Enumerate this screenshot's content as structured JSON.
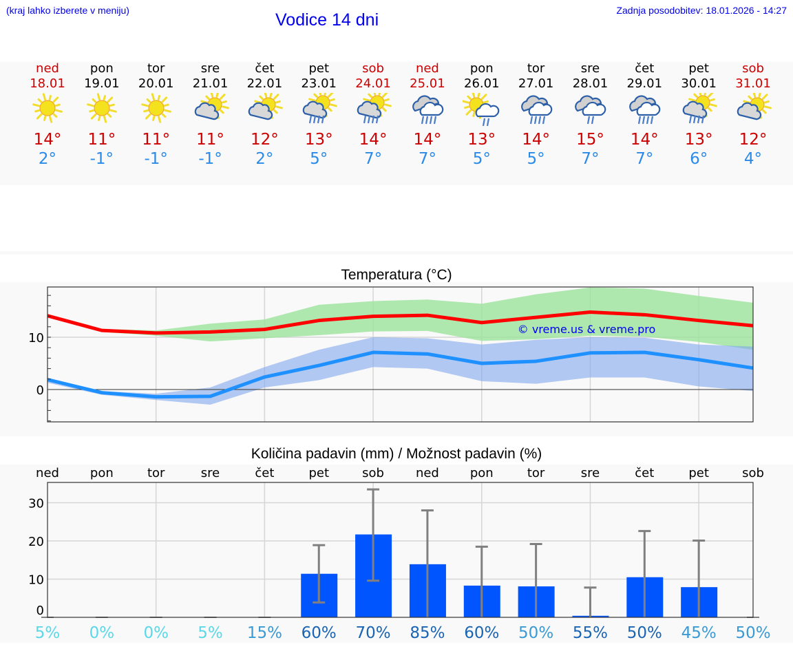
{
  "header": {
    "hint": "(kraj lahko izberete v meniju)",
    "title": "Vodice 14 dni",
    "updated": "Zadnja posodobitev: 18.01.2026 - 14:27"
  },
  "days": [
    {
      "name": "ned",
      "date": "18.01",
      "weekend": true,
      "icon": "sunny",
      "tmax": "14°",
      "tmin": "2°"
    },
    {
      "name": "pon",
      "date": "19.01",
      "weekend": false,
      "icon": "sunny",
      "tmax": "11°",
      "tmin": "-1°"
    },
    {
      "name": "tor",
      "date": "20.01",
      "weekend": false,
      "icon": "sunny",
      "tmax": "11°",
      "tmin": "-1°"
    },
    {
      "name": "sre",
      "date": "21.01",
      "weekend": false,
      "icon": "partly-cloudy",
      "tmax": "11°",
      "tmin": "-1°"
    },
    {
      "name": "čet",
      "date": "22.01",
      "weekend": false,
      "icon": "partly-cloudy",
      "tmax": "12°",
      "tmin": "2°"
    },
    {
      "name": "pet",
      "date": "23.01",
      "weekend": false,
      "icon": "sun-cloud-rain",
      "tmax": "13°",
      "tmin": "5°"
    },
    {
      "name": "sob",
      "date": "24.01",
      "weekend": true,
      "icon": "sun-cloud-rain",
      "tmax": "14°",
      "tmin": "7°"
    },
    {
      "name": "ned",
      "date": "25.01",
      "weekend": true,
      "icon": "cloudy-rain",
      "tmax": "14°",
      "tmin": "7°"
    },
    {
      "name": "pon",
      "date": "26.01",
      "weekend": false,
      "icon": "sun-cloud-light-rain",
      "tmax": "13°",
      "tmin": "5°"
    },
    {
      "name": "tor",
      "date": "27.01",
      "weekend": false,
      "icon": "cloudy-rain",
      "tmax": "14°",
      "tmin": "5°"
    },
    {
      "name": "sre",
      "date": "28.01",
      "weekend": false,
      "icon": "cloudy-light-rain",
      "tmax": "15°",
      "tmin": "7°"
    },
    {
      "name": "čet",
      "date": "29.01",
      "weekend": false,
      "icon": "cloudy-rain",
      "tmax": "14°",
      "tmin": "7°"
    },
    {
      "name": "pet",
      "date": "30.01",
      "weekend": false,
      "icon": "sun-cloud-rain",
      "tmax": "13°",
      "tmin": "6°"
    },
    {
      "name": "sob",
      "date": "31.01",
      "weekend": true,
      "icon": "partly-cloudy",
      "tmax": "12°",
      "tmin": "4°"
    }
  ],
  "colors": {
    "tmax": "#cc0000",
    "tmin": "#2a8ae8",
    "weekend": "#cc0000",
    "link": "#0000ee",
    "bar": "#0055ff",
    "errorbar": "#808080"
  },
  "chart_data": [
    {
      "type": "line",
      "title": "Temperatura (°C)",
      "xlabel": "",
      "ylabel": "",
      "ylim": [
        -6.2,
        19.6
      ],
      "yticks": [
        0,
        10
      ],
      "grid": true,
      "watermark": "© vreme.us & vreme.pro",
      "categories": [
        "18.01",
        "19.01",
        "20.01",
        "21.01",
        "22.01",
        "23.01",
        "24.01",
        "25.01",
        "26.01",
        "27.01",
        "28.01",
        "29.01",
        "30.01",
        "31.01"
      ],
      "series": [
        {
          "name": "max",
          "color": "#ff0000",
          "values": [
            14.1,
            11.3,
            10.8,
            11.0,
            11.5,
            13.2,
            14.0,
            14.2,
            12.8,
            13.8,
            14.8,
            14.3,
            13.2,
            12.2
          ]
        },
        {
          "name": "max_range_upper",
          "color": "#aee9ae",
          "values": [
            14.2,
            11.6,
            11.3,
            12.6,
            13.4,
            16.2,
            16.9,
            17.2,
            16.4,
            18.2,
            19.5,
            19.3,
            17.9,
            16.6
          ]
        },
        {
          "name": "max_range_lower",
          "color": "#aee9ae",
          "values": [
            14.0,
            11.0,
            10.3,
            9.2,
            9.8,
            10.4,
            11.1,
            11.2,
            9.3,
            9.6,
            10.3,
            10.1,
            9.1,
            7.6
          ]
        },
        {
          "name": "min",
          "color": "#1e90ff",
          "values": [
            1.9,
            -0.6,
            -1.4,
            -1.3,
            2.4,
            4.6,
            7.1,
            6.8,
            5.0,
            5.4,
            7.0,
            7.1,
            5.7,
            4.1
          ]
        },
        {
          "name": "min_range_upper",
          "color": "#adc6f2",
          "values": [
            2.1,
            -0.3,
            -0.8,
            0.4,
            4.3,
            7.6,
            10.0,
            9.8,
            8.6,
            9.5,
            10.0,
            9.9,
            8.6,
            8.2
          ]
        },
        {
          "name": "min_range_lower",
          "color": "#adc6f2",
          "values": [
            1.3,
            -1.0,
            -2.0,
            -2.9,
            0.4,
            1.8,
            4.3,
            4.0,
            1.6,
            1.1,
            2.3,
            2.3,
            0.6,
            -0.3
          ]
        }
      ]
    },
    {
      "type": "bar",
      "title": "Količina padavin (mm) / Možnost padavin (%)",
      "xlabel": "",
      "ylabel": "",
      "ylim": [
        0,
        35.3
      ],
      "yticks": [
        0,
        10,
        20,
        30
      ],
      "grid": true,
      "categories": [
        "ned",
        "pon",
        "tor",
        "sre",
        "čet",
        "pet",
        "sob",
        "ned",
        "pon",
        "tor",
        "sre",
        "čet",
        "pet",
        "sob"
      ],
      "series": [
        {
          "name": "precip_mm",
          "color": "#0055ff",
          "values": [
            0,
            0,
            0,
            0,
            0,
            11.4,
            21.7,
            13.9,
            8.3,
            8.1,
            0.4,
            10.5,
            7.9,
            0
          ]
        },
        {
          "name": "error_low",
          "color": "#808080",
          "values": [
            0,
            0,
            0,
            0,
            0,
            3.9,
            9.6,
            0,
            0,
            0,
            0,
            0,
            0,
            0
          ]
        },
        {
          "name": "error_high",
          "color": "#808080",
          "values": [
            0,
            0,
            0,
            0,
            0,
            18.9,
            33.5,
            28.0,
            18.5,
            19.2,
            7.8,
            22.6,
            20.1,
            0
          ]
        }
      ],
      "probability_pct": [
        "5%",
        "0%",
        "0%",
        "5%",
        "15%",
        "60%",
        "70%",
        "85%",
        "60%",
        "50%",
        "55%",
        "50%",
        "45%",
        "50%"
      ],
      "probability_colors": [
        "#5bd8e8",
        "#5bd8e8",
        "#5bd8e8",
        "#5bd8e8",
        "#3a9ad4",
        "#1a64b4",
        "#1a64b4",
        "#1a64b4",
        "#1a64b4",
        "#3a9ad4",
        "#1a64b4",
        "#1a64b4",
        "#3a9ad4",
        "#3a9ad4"
      ]
    }
  ]
}
